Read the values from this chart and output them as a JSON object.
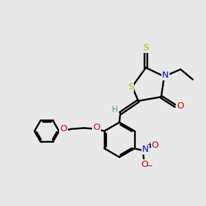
{
  "bg_color": "#e8e8e8",
  "bond_color": "#000000",
  "bond_width": 1.8,
  "dbo": 0.055,
  "font_size": 8.5,
  "atom_colors": {
    "S": "#bbbb00",
    "N": "#0000cc",
    "O": "#cc0000",
    "H": "#4a9a9a",
    "C": "#000000"
  },
  "xlim": [
    0,
    10
  ],
  "ylim": [
    0,
    10
  ]
}
